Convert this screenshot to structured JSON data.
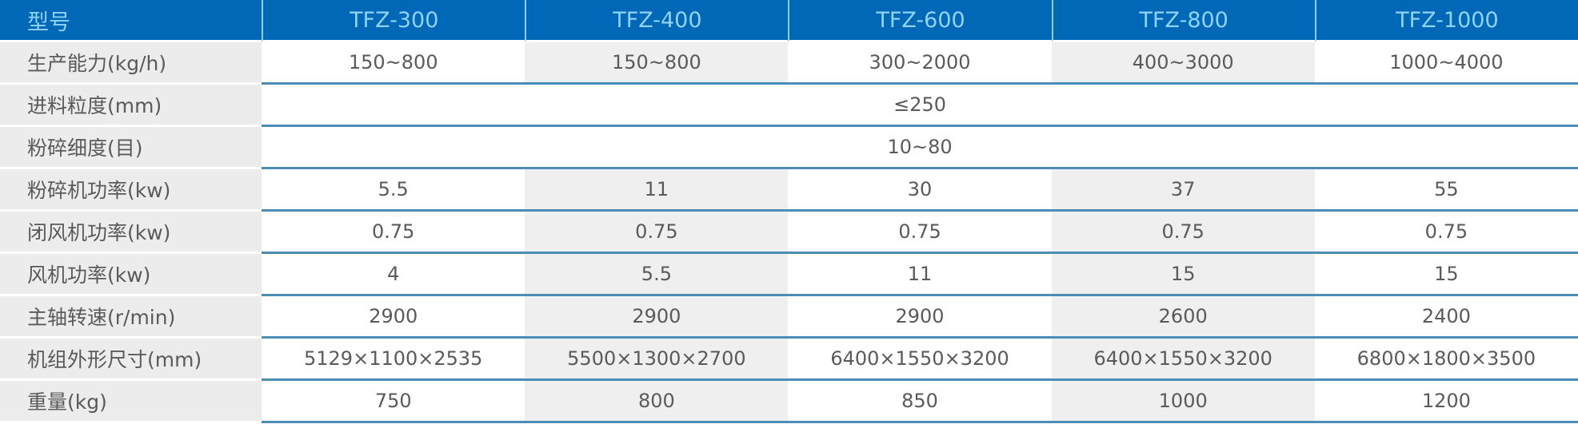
{
  "table": {
    "header": {
      "label": "型号",
      "models": [
        "TFZ-300",
        "TFZ-400",
        "TFZ-600",
        "TFZ-800",
        "TFZ-1000"
      ]
    },
    "rows": [
      {
        "label": "生产能力(kg/h)",
        "values": [
          "150~800",
          "150~800",
          "300~2000",
          "400~3000",
          "1000~4000"
        ]
      },
      {
        "label": "进料粒度(mm)",
        "span_value": "≤250"
      },
      {
        "label": "粉碎细度(目)",
        "span_value": "10~80"
      },
      {
        "label": "粉碎机功率(kw)",
        "values": [
          "5.5",
          "11",
          "30",
          "37",
          "55"
        ]
      },
      {
        "label": "闭风机功率(kw)",
        "values": [
          "0.75",
          "0.75",
          "0.75",
          "0.75",
          "0.75"
        ]
      },
      {
        "label": "风机功率(kw)",
        "values": [
          "4",
          "5.5",
          "11",
          "15",
          "15"
        ]
      },
      {
        "label": "主轴转速(r/min)",
        "values": [
          "2900",
          "2900",
          "2900",
          "2600",
          "2400"
        ]
      },
      {
        "label": "机组外形尺寸(mm)",
        "values": [
          "5129×1100×2535",
          "5500×1300×2700",
          "6400×1550×3200",
          "6400×1550×3200",
          "6800×1800×3500"
        ]
      },
      {
        "label": "重量(kg)",
        "values": [
          "750",
          "800",
          "850",
          "1000",
          "1200"
        ]
      }
    ]
  },
  "colors": {
    "header_bg": "#0168b7",
    "header_text": "#8fd3f5",
    "label_bg": "#ececec",
    "shade_bg": "#efefef",
    "row_divider": "#4b8db6",
    "text": "#5a5a5a"
  }
}
